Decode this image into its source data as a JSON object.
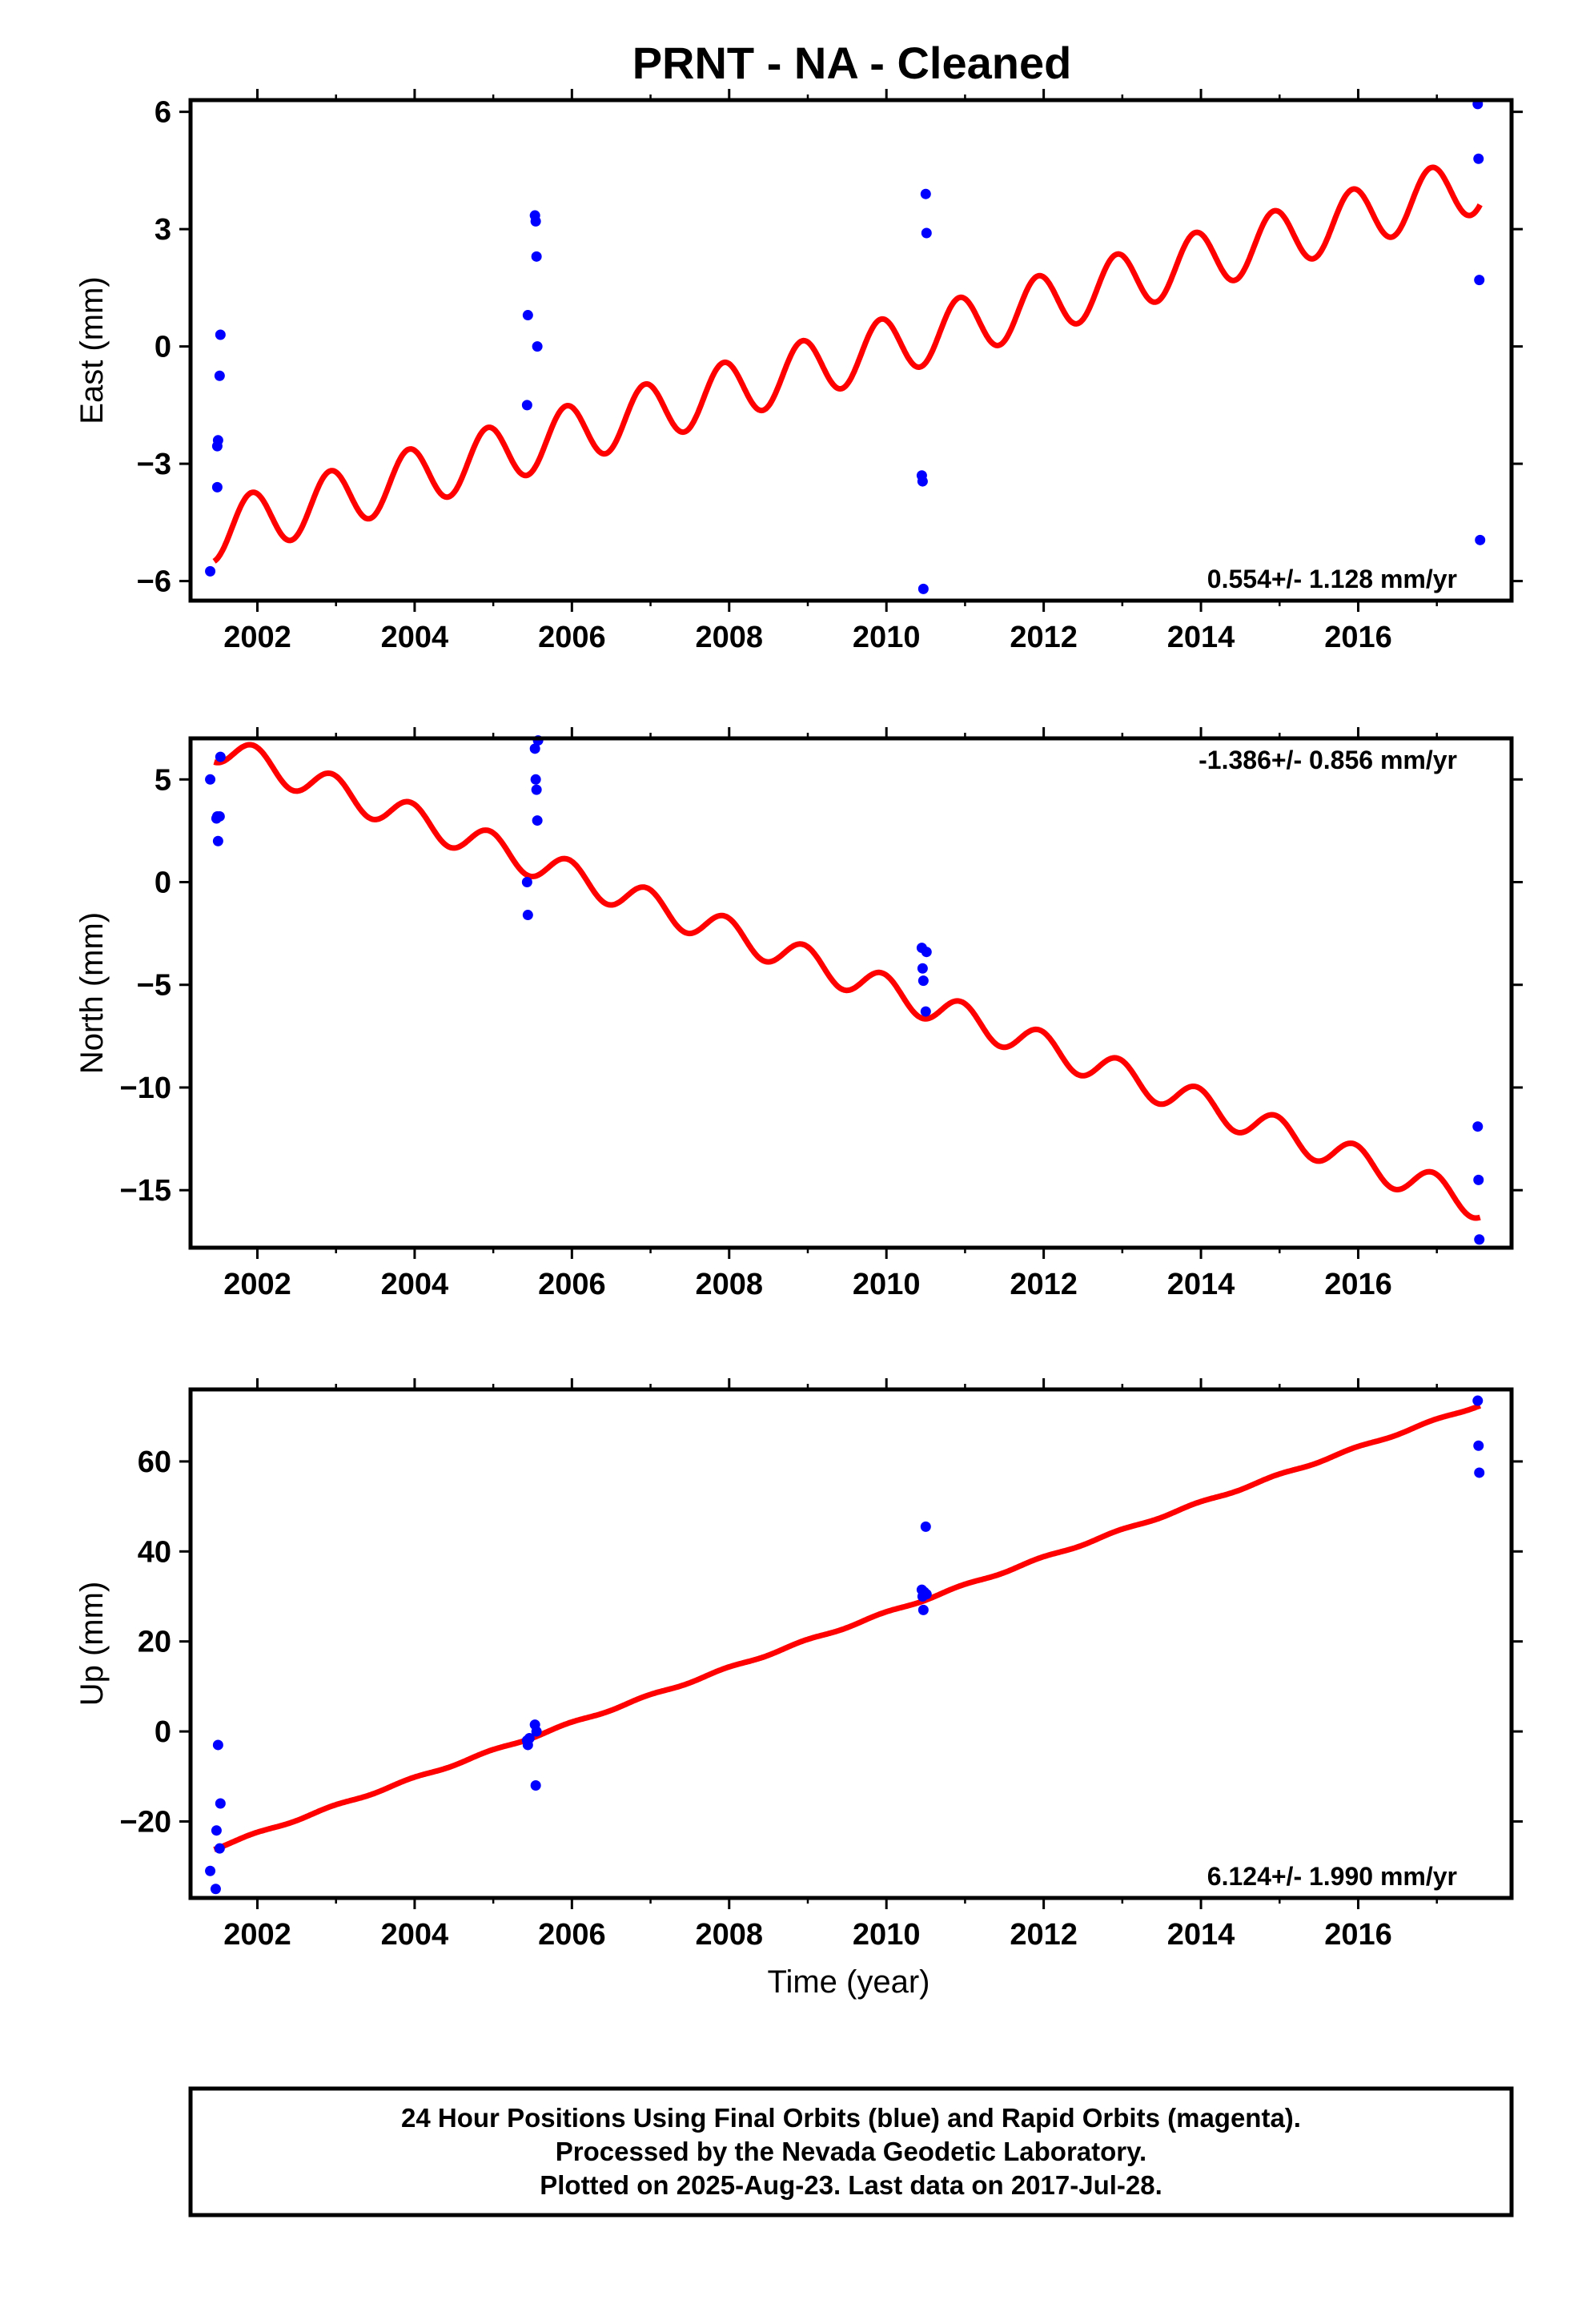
{
  "title": "PRNT  - NA - Cleaned",
  "colors": {
    "fit": "#ff0000",
    "points": "#0000ff",
    "axis": "#000000"
  },
  "chart_data": [
    {
      "type": "scatter",
      "panel": "east",
      "ylabel": "East (mm)",
      "xlabel": "",
      "xlim": [
        2001.15,
        2017.95
      ],
      "ylim": [
        -6.5,
        6.3
      ],
      "xticks": [
        2002,
        2004,
        2006,
        2008,
        2010,
        2012,
        2014,
        2016
      ],
      "yticks": [
        -6,
        -3,
        0,
        3,
        6
      ],
      "ytick_labels": [
        "−6",
        "−3",
        "0",
        "3",
        "6"
      ],
      "rate_label": "0.554+/- 1.128 mm/yr",
      "rate_position": "bottom-right",
      "points": {
        "x": [
          2001.4,
          2001.49,
          2001.49,
          2001.5,
          2001.52,
          2001.53,
          2005.43,
          2005.44,
          2005.53,
          2005.54,
          2005.55,
          2005.56,
          2010.45,
          2010.46,
          2010.47,
          2010.5,
          2010.51,
          2017.52,
          2017.53,
          2017.54,
          2017.55
        ],
        "y": [
          -5.75,
          -3.6,
          -2.55,
          -2.4,
          -0.75,
          0.3,
          -1.5,
          0.8,
          3.35,
          3.2,
          2.3,
          0.0,
          -3.3,
          -3.45,
          -6.2,
          3.9,
          2.9,
          6.2,
          4.8,
          1.7,
          -4.95
        ]
      },
      "fit": {
        "rate": 0.554,
        "intercept_year": 2001.45,
        "intercept_value": -4.75,
        "amplitude": 0.75,
        "period": 1.0,
        "phase_year": 2001.68,
        "x_start": 2001.45,
        "x_end": 2017.55
      }
    },
    {
      "type": "scatter",
      "panel": "north",
      "ylabel": "North (mm)",
      "xlabel": "",
      "xlim": [
        2001.15,
        2017.95
      ],
      "ylim": [
        -17.8,
        7.0
      ],
      "xticks": [
        2002,
        2004,
        2006,
        2008,
        2010,
        2012,
        2014,
        2016
      ],
      "yticks": [
        -15,
        -10,
        -5,
        0,
        5
      ],
      "ytick_labels": [
        "−15",
        "−10",
        "−5",
        "0",
        "5"
      ],
      "rate_label": "-1.386+/- 0.856 mm/yr",
      "rate_position": "top-right",
      "points": {
        "x": [
          2001.4,
          2001.48,
          2001.49,
          2001.5,
          2001.52,
          2001.53,
          2005.43,
          2005.44,
          2005.53,
          2005.54,
          2005.55,
          2005.56,
          2005.57,
          2010.45,
          2010.46,
          2010.47,
          2010.5,
          2010.51,
          2017.52,
          2017.53,
          2017.54
        ],
        "y": [
          5.0,
          3.1,
          3.2,
          2.0,
          3.2,
          6.1,
          0.0,
          -1.6,
          6.5,
          5.0,
          4.5,
          3.0,
          6.9,
          -3.2,
          -4.2,
          -4.8,
          -6.3,
          -3.4,
          -11.9,
          -14.5,
          -17.4
        ]
      },
      "fit": {
        "rate": -1.386,
        "intercept_year": 2001.45,
        "intercept_value": 6.6,
        "amplitude": 0.75,
        "period": 1.0,
        "phase_year": 2001.7,
        "x_start": 2001.45,
        "x_end": 2017.55
      }
    },
    {
      "type": "scatter",
      "panel": "up",
      "ylabel": "Up (mm)",
      "xlabel": "Time (year)",
      "xlim": [
        2001.15,
        2017.95
      ],
      "ylim": [
        -37,
        76
      ],
      "xticks": [
        2002,
        2004,
        2006,
        2008,
        2010,
        2012,
        2014,
        2016
      ],
      "yticks": [
        -20,
        0,
        20,
        40,
        60
      ],
      "ytick_labels": [
        "−20",
        "0",
        "20",
        "40",
        "60"
      ],
      "rate_label": "6.124+/- 1.990 mm/yr",
      "rate_position": "bottom-right",
      "points": {
        "x": [
          2001.4,
          2001.47,
          2001.48,
          2001.5,
          2001.52,
          2001.53,
          2005.43,
          2005.44,
          2005.46,
          2005.53,
          2005.54,
          2005.55,
          2010.45,
          2010.46,
          2010.47,
          2010.48,
          2010.5,
          2010.51,
          2017.52,
          2017.53,
          2017.54
        ],
        "y": [
          -31,
          -35,
          -22,
          -3,
          -26,
          -16,
          -2,
          -3,
          -1.5,
          1.5,
          -12,
          0,
          31.5,
          30,
          27,
          31,
          45.5,
          30.5,
          73.5,
          63.5,
          57.5
        ]
      },
      "fit": {
        "rate": 6.124,
        "intercept_year": 2001.45,
        "intercept_value": -26,
        "amplitude": 0.25,
        "period": 1.0,
        "phase_year": 2001.7,
        "x_start": 2001.45,
        "x_end": 2017.55
      }
    }
  ],
  "footer": {
    "line1": "24 Hour Positions Using Final Orbits (blue) and Rapid Orbits (magenta).",
    "line2": "Processed by the Nevada Geodetic Laboratory.",
    "line3": "Plotted on 2025-Aug-23. Last data on 2017-Jul-28."
  }
}
